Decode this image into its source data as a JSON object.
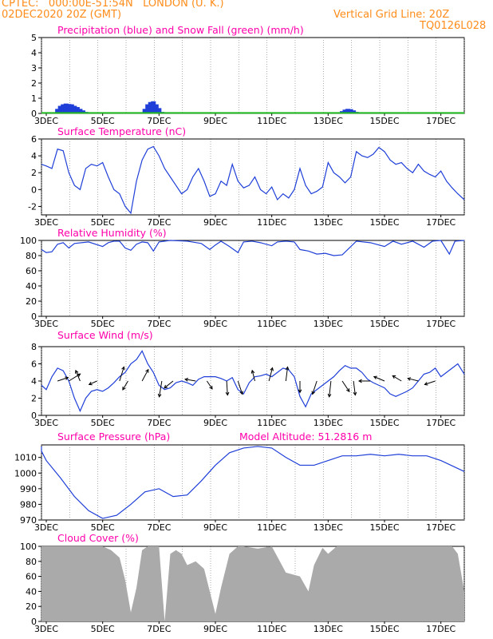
{
  "header": {
    "line1": "CPTEC:   000:00E-51:54N   LONDON (U. K.)",
    "line2": "02DEC2020 20Z (GMT)",
    "right1": "Vertical Grid Line: 20Z",
    "right2": "TQ0126L028"
  },
  "colors": {
    "header": "#ff8c1a",
    "title": "#ff00aa",
    "line": "#1f3fd8",
    "snow": "#22bb22",
    "cloud": "#aaaaaa",
    "grid": "#888888"
  },
  "chart_data": [
    {
      "type": "bar",
      "title": "Precipitation (blue) and Snow Fall (green) (mm/h)",
      "x_tick_labels": [
        "3DEC",
        "5DEC",
        "7DEC",
        "9DEC",
        "11DEC",
        "13DEC",
        "15DEC",
        "17DEC"
      ],
      "x_range_days": [
        2.83,
        17.83
      ],
      "ylim": [
        0,
        5
      ],
      "y_ticks": [
        0,
        1,
        2,
        3,
        4,
        5
      ],
      "series": [
        {
          "name": "Precipitation",
          "x": [
            2.5,
            2.6,
            3.4,
            3.5,
            3.6,
            3.7,
            3.8,
            3.9,
            4.0,
            4.1,
            4.2,
            4.3,
            4.4,
            4.5,
            6.5,
            6.6,
            6.7,
            6.8,
            6.9,
            7.0,
            7.1,
            13.5,
            13.6,
            13.7,
            13.8,
            13.9,
            14.0,
            14.1
          ],
          "values": [
            0.08,
            0.15,
            0.3,
            0.5,
            0.6,
            0.65,
            0.62,
            0.6,
            0.5,
            0.42,
            0.3,
            0.2,
            0.1,
            0.05,
            0.3,
            0.6,
            0.75,
            0.8,
            0.6,
            0.35,
            0.1,
            0.15,
            0.25,
            0.3,
            0.28,
            0.2,
            0.1,
            0.05
          ]
        },
        {
          "name": "Snow Fall",
          "x": [
            2.83,
            17.83
          ],
          "values": [
            0.03,
            0.03
          ]
        }
      ]
    },
    {
      "type": "line",
      "title": "Surface Temperature (nC)",
      "x_tick_labels": [
        "3DEC",
        "5DEC",
        "7DEC",
        "9DEC",
        "11DEC",
        "13DEC",
        "15DEC",
        "17DEC"
      ],
      "ylim": [
        -3,
        6
      ],
      "y_ticks": [
        -2,
        0,
        2,
        4,
        6
      ],
      "x": [
        2.83,
        3.0,
        3.2,
        3.4,
        3.6,
        3.8,
        4.0,
        4.2,
        4.4,
        4.6,
        4.8,
        5.0,
        5.2,
        5.4,
        5.6,
        5.8,
        6.0,
        6.2,
        6.4,
        6.6,
        6.8,
        7.0,
        7.2,
        7.4,
        7.6,
        7.8,
        8.0,
        8.2,
        8.4,
        8.6,
        8.8,
        9.0,
        9.2,
        9.4,
        9.6,
        9.8,
        10.0,
        10.2,
        10.4,
        10.6,
        10.8,
        11.0,
        11.2,
        11.4,
        11.6,
        11.8,
        12.0,
        12.2,
        12.4,
        12.6,
        12.8,
        13.0,
        13.2,
        13.4,
        13.6,
        13.8,
        14.0,
        14.2,
        14.4,
        14.6,
        14.8,
        15.0,
        15.2,
        15.4,
        15.6,
        15.8,
        16.0,
        16.2,
        16.4,
        16.6,
        16.8,
        17.0,
        17.2,
        17.4,
        17.6,
        17.83
      ],
      "values": [
        3.0,
        2.8,
        2.5,
        4.8,
        4.6,
        2.0,
        0.5,
        0.0,
        2.5,
        3.0,
        2.8,
        3.2,
        1.5,
        0.0,
        -0.5,
        -2.0,
        -2.8,
        1.0,
        3.5,
        4.8,
        5.1,
        4.0,
        2.5,
        1.5,
        0.5,
        -0.5,
        0.0,
        1.5,
        2.5,
        1.0,
        -0.8,
        -0.5,
        1.0,
        0.5,
        3.0,
        1.0,
        0.2,
        0.5,
        1.5,
        0.0,
        -0.5,
        0.3,
        -1.2,
        -0.5,
        -1.0,
        0.0,
        2.5,
        0.5,
        -0.5,
        -0.2,
        0.3,
        3.2,
        2.0,
        1.5,
        0.8,
        1.5,
        4.5,
        4.0,
        3.8,
        4.2,
        5.0,
        4.5,
        3.5,
        3.0,
        3.2,
        2.5,
        2.0,
        3.0,
        2.2,
        1.8,
        1.5,
        2.2,
        1.0,
        0.2,
        -0.5,
        -1.2
      ]
    },
    {
      "type": "line",
      "title": "Relative Humidity (%)",
      "x_tick_labels": [
        "3DEC",
        "5DEC",
        "7DEC",
        "9DEC",
        "11DEC",
        "13DEC",
        "15DEC",
        "17DEC"
      ],
      "ylim": [
        0,
        100
      ],
      "y_ticks": [
        0,
        20,
        40,
        60,
        80,
        100
      ],
      "x": [
        2.83,
        3.0,
        3.2,
        3.4,
        3.6,
        3.8,
        4.0,
        4.5,
        5.0,
        5.2,
        5.4,
        5.6,
        5.8,
        6.0,
        6.2,
        6.4,
        6.6,
        6.8,
        7.0,
        7.2,
        7.4,
        8.0,
        8.5,
        8.8,
        9.0,
        9.2,
        9.5,
        9.8,
        10.0,
        10.3,
        10.6,
        11.0,
        11.2,
        11.5,
        11.8,
        12.0,
        12.3,
        12.6,
        12.9,
        13.2,
        13.5,
        14.0,
        14.5,
        15.0,
        15.3,
        15.6,
        16.0,
        16.4,
        16.7,
        17.0,
        17.3,
        17.5,
        17.83
      ],
      "values": [
        88,
        84,
        85,
        95,
        97,
        90,
        96,
        98,
        92,
        97,
        99,
        99,
        90,
        87,
        95,
        98,
        97,
        86,
        98,
        99,
        100,
        99,
        96,
        88,
        94,
        99,
        92,
        84,
        98,
        99,
        97,
        93,
        98,
        99,
        98,
        88,
        86,
        82,
        83,
        80,
        81,
        99,
        97,
        92,
        99,
        95,
        99,
        91,
        99,
        100,
        82,
        99,
        100
      ]
    },
    {
      "type": "line",
      "title": "Surface Wind (m/s)",
      "x_tick_labels": [
        "3DEC",
        "5DEC",
        "7DEC",
        "9DEC",
        "11DEC",
        "13DEC",
        "15DEC",
        "17DEC"
      ],
      "ylim": [
        0,
        8
      ],
      "y_ticks": [
        0,
        2,
        4,
        6,
        8
      ],
      "x": [
        2.83,
        3.0,
        3.2,
        3.4,
        3.6,
        3.8,
        4.0,
        4.2,
        4.4,
        4.6,
        4.8,
        5.0,
        5.2,
        5.4,
        5.6,
        5.8,
        6.0,
        6.2,
        6.4,
        6.6,
        6.8,
        7.0,
        7.2,
        7.4,
        7.6,
        7.8,
        8.0,
        8.2,
        8.4,
        8.6,
        8.8,
        9.0,
        9.2,
        9.4,
        9.6,
        9.8,
        10.0,
        10.2,
        10.4,
        10.6,
        10.8,
        11.0,
        11.2,
        11.4,
        11.6,
        11.8,
        12.0,
        12.2,
        12.4,
        12.6,
        12.8,
        13.0,
        13.2,
        13.4,
        13.6,
        13.8,
        14.0,
        14.2,
        14.4,
        14.6,
        14.8,
        15.0,
        15.2,
        15.4,
        15.6,
        15.8,
        16.0,
        16.2,
        16.4,
        16.6,
        16.8,
        17.0,
        17.2,
        17.4,
        17.6,
        17.83
      ],
      "values": [
        3.5,
        3.0,
        4.5,
        5.5,
        5.2,
        4.0,
        2.0,
        0.5,
        2.0,
        2.8,
        3.0,
        2.8,
        3.2,
        3.8,
        4.5,
        5.0,
        6.0,
        6.5,
        7.5,
        6.0,
        5.0,
        3.5,
        3.0,
        3.2,
        3.8,
        4.0,
        3.8,
        3.5,
        4.2,
        4.5,
        4.5,
        4.5,
        4.3,
        4.0,
        4.4,
        3.0,
        2.5,
        3.8,
        4.5,
        4.6,
        4.8,
        4.5,
        5.0,
        5.5,
        5.3,
        4.5,
        2.2,
        1.0,
        2.5,
        3.0,
        3.5,
        4.0,
        4.5,
        5.2,
        5.8,
        5.5,
        5.5,
        5.0,
        4.2,
        3.8,
        3.5,
        3.2,
        2.5,
        2.2,
        2.5,
        2.8,
        3.2,
        4.0,
        4.8,
        5.0,
        5.5,
        4.5,
        5.0,
        5.5,
        6.0,
        4.8
      ],
      "wind_vectors": [
        {
          "day": 3.4,
          "u": 1.2,
          "v": 0.4
        },
        {
          "day": 3.8,
          "u": 1.3,
          "v": 0.8
        },
        {
          "day": 4.2,
          "u": -0.5,
          "v": 1.2
        },
        {
          "day": 4.8,
          "u": -0.9,
          "v": -0.4
        },
        {
          "day": 5.6,
          "u": 0.5,
          "v": 1.6
        },
        {
          "day": 5.9,
          "u": -0.6,
          "v": -1.0
        },
        {
          "day": 6.4,
          "u": 0.7,
          "v": 1.3
        },
        {
          "day": 7.1,
          "u": -0.3,
          "v": -1.8
        },
        {
          "day": 7.5,
          "u": -1.0,
          "v": -0.8
        },
        {
          "day": 8.3,
          "u": -1.2,
          "v": 0.2
        },
        {
          "day": 8.7,
          "u": 0.6,
          "v": -0.9
        },
        {
          "day": 9.4,
          "u": 0.1,
          "v": -1.6
        },
        {
          "day": 9.8,
          "u": 0.5,
          "v": -1.5
        },
        {
          "day": 10.4,
          "u": -0.3,
          "v": 1.2
        },
        {
          "day": 10.9,
          "u": 0.4,
          "v": 1.5
        },
        {
          "day": 11.5,
          "u": 0.2,
          "v": 1.6
        },
        {
          "day": 12.0,
          "u": 0.0,
          "v": -1.3
        },
        {
          "day": 12.6,
          "u": -0.5,
          "v": -1.5
        },
        {
          "day": 13.1,
          "u": -0.2,
          "v": -1.8
        },
        {
          "day": 13.5,
          "u": 0.8,
          "v": -1.2
        },
        {
          "day": 13.9,
          "u": 0.2,
          "v": -1.6
        },
        {
          "day": 14.5,
          "u": -1.3,
          "v": 0.0
        },
        {
          "day": 15.0,
          "u": -1.2,
          "v": 0.5
        },
        {
          "day": 15.6,
          "u": -1.0,
          "v": 0.6
        },
        {
          "day": 16.2,
          "u": -1.2,
          "v": 0.3
        },
        {
          "day": 16.8,
          "u": -1.2,
          "v": -0.4
        }
      ]
    },
    {
      "type": "line",
      "title": "Surface Pressure (hPa)",
      "annotation": "Model Altitude: 51.2816 m",
      "x_tick_labels": [
        "3DEC",
        "5DEC",
        "7DEC",
        "9DEC",
        "11DEC",
        "13DEC",
        "15DEC",
        "17DEC"
      ],
      "ylim": [
        970,
        1018
      ],
      "y_ticks": [
        970,
        980,
        990,
        1000,
        1010
      ],
      "x": [
        2.0,
        2.5,
        3.0,
        3.5,
        4.0,
        4.5,
        5.0,
        5.5,
        6.0,
        6.5,
        7.0,
        7.5,
        8.0,
        8.5,
        9.0,
        9.5,
        10.0,
        10.5,
        11.0,
        11.5,
        12.0,
        12.5,
        13.0,
        13.5,
        14.0,
        14.5,
        15.0,
        15.5,
        16.0,
        16.5,
        17.0,
        17.83
      ],
      "values": [
        1017,
        1014,
        1008,
        997,
        985,
        976,
        971,
        973,
        980,
        988,
        990,
        985,
        986,
        995,
        1005,
        1013,
        1016,
        1017,
        1016,
        1010,
        1005,
        1005,
        1008,
        1011,
        1011,
        1012,
        1011,
        1012,
        1011,
        1011,
        1008,
        1001
      ]
    },
    {
      "type": "area",
      "title": "Cloud Cover (%)",
      "x_tick_labels": [
        "3DEC",
        "5DEC",
        "7DEC",
        "9DEC",
        "11DEC",
        "13DEC",
        "15DEC",
        "17DEC"
      ],
      "ylim": [
        0,
        100
      ],
      "y_ticks": [
        0,
        20,
        40,
        60,
        80,
        100
      ],
      "x": [
        2.83,
        3.5,
        4.0,
        4.5,
        5.0,
        5.3,
        5.6,
        5.8,
        6.0,
        6.2,
        6.4,
        6.6,
        6.8,
        7.0,
        7.2,
        7.4,
        7.6,
        7.8,
        8.0,
        8.3,
        8.6,
        8.8,
        9.0,
        9.2,
        9.5,
        9.8,
        10.0,
        10.5,
        11.0,
        11.5,
        12.0,
        12.3,
        12.5,
        12.8,
        13.0,
        13.3,
        13.6,
        14.0,
        14.5,
        15.0,
        15.5,
        16.0,
        16.5,
        17.0,
        17.4,
        17.6,
        17.83
      ],
      "values": [
        100,
        100,
        100,
        100,
        100,
        95,
        85,
        55,
        12,
        45,
        95,
        100,
        100,
        100,
        0,
        90,
        95,
        90,
        75,
        80,
        70,
        40,
        10,
        45,
        90,
        100,
        100,
        97,
        100,
        65,
        60,
        40,
        75,
        98,
        90,
        100,
        100,
        100,
        100,
        100,
        100,
        100,
        100,
        100,
        100,
        90,
        40
      ]
    }
  ]
}
